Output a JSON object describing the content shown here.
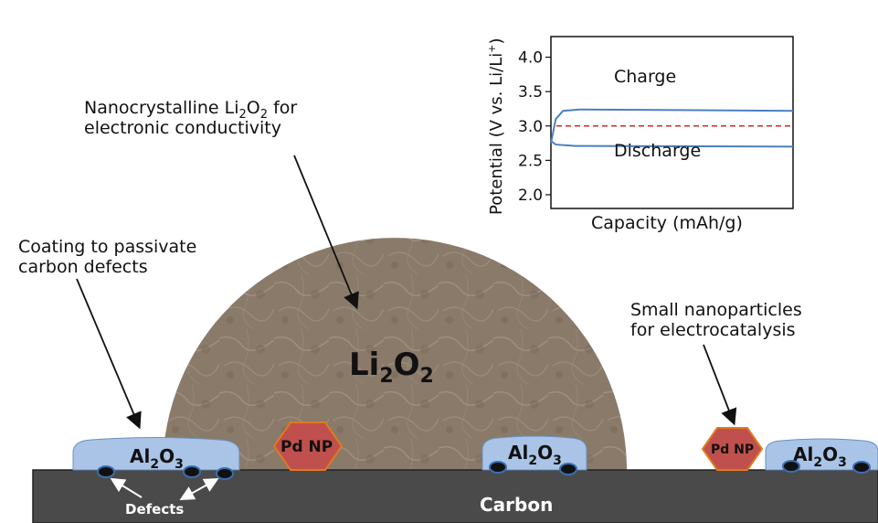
{
  "labels": {
    "nanocrystalline_line1": "Nanocrystalline Li",
    "nanocrystalline_sub1": "2",
    "nanocrystalline_O": "O",
    "nanocrystalline_sub2": "2",
    "nanocrystalline_rest": " for",
    "nanocrystalline_line2": "electronic conductivity",
    "coating_line1": "Coating to passivate",
    "coating_line2": "carbon defects",
    "small_line1": "Small nanoparticles",
    "small_line2": "for electrocatalysis",
    "li2o2_Li": "Li",
    "li2o2_sub1": "2",
    "li2o2_O": "O",
    "li2o2_sub2": "2",
    "al2o3_Al": "Al",
    "al2o3_sub": "2",
    "al2o3_O": "O",
    "al2o3_sub3": "3",
    "pd_np": "Pd NP",
    "carbon": "Carbon",
    "defects": "Defects"
  },
  "chart_data": {
    "type": "line",
    "xlabel": "Capacity (mAh/g)",
    "ylabel_main": "Potential (V vs. Li/Li",
    "ylabel_sup": "+",
    "ylabel_close": ")",
    "ylim": [
      1.8,
      4.3
    ],
    "yticks": [
      "4.0",
      "3.5",
      "3.0",
      "2.5",
      "2.0"
    ],
    "ytick_values": [
      4.0,
      3.5,
      3.0,
      2.5,
      2.0
    ],
    "reference_potential": 3.0,
    "series": [
      {
        "name": "Charge",
        "color": "#4a7fc1",
        "values": [
          [
            0,
            2.75
          ],
          [
            0.02,
            3.1
          ],
          [
            0.05,
            3.22
          ],
          [
            0.12,
            3.24
          ],
          [
            1.0,
            3.22
          ]
        ]
      },
      {
        "name": "Discharge",
        "color": "#4a7fc1",
        "values": [
          [
            0,
            2.78
          ],
          [
            0.02,
            2.73
          ],
          [
            0.1,
            2.71
          ],
          [
            1.0,
            2.7
          ]
        ]
      }
    ],
    "reference_color": "#d62828"
  },
  "colors": {
    "carbon": "#4a4a4a",
    "li2o2": "#8b7b6b",
    "al2o3": "#a9c4e6",
    "pd_np": "#c0504d",
    "pd_border": "#e07a1e"
  }
}
